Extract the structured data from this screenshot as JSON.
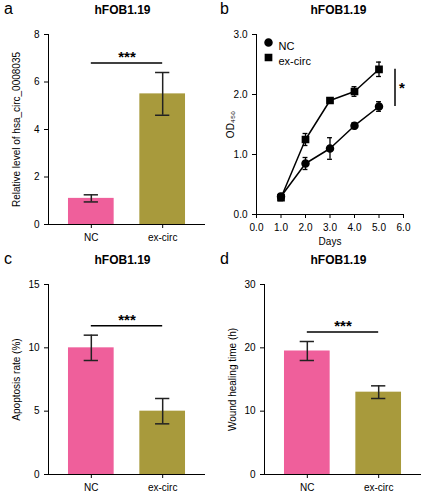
{
  "chart_data": [
    {
      "type": "bar",
      "panel": "a",
      "title": "hFOB1.19",
      "ylabel": "Relative level of hsa_circ_0008035",
      "categories": [
        "NC",
        "ex-circ"
      ],
      "values": [
        1.1,
        5.5
      ],
      "errors": [
        0.15,
        0.9
      ],
      "colors": [
        "#ef5f9b",
        "#a89a3c"
      ],
      "ylim": [
        0,
        8
      ],
      "yticks": [
        0,
        2,
        4,
        6,
        8
      ],
      "annotation": "***"
    },
    {
      "type": "line",
      "panel": "b",
      "title": "hFOB1.19",
      "ylabel": "OD₄₅₀",
      "xlabel": "Days",
      "x": [
        1,
        2,
        3,
        4,
        5
      ],
      "series": [
        {
          "name": "NC",
          "color": "#000000",
          "marker": "circle",
          "values": [
            0.3,
            0.85,
            1.1,
            1.48,
            1.8
          ],
          "errors": [
            0.05,
            0.1,
            0.18,
            0.05,
            0.08
          ]
        },
        {
          "name": "ex-circ",
          "color": "#000000",
          "marker": "square",
          "values": [
            0.28,
            1.25,
            1.9,
            2.05,
            2.42
          ],
          "errors": [
            0.05,
            0.1,
            0.03,
            0.08,
            0.12
          ]
        }
      ],
      "xlim": [
        0,
        6
      ],
      "xticks": [
        0,
        1,
        2,
        3,
        4,
        5,
        6
      ],
      "ylim": [
        0,
        3
      ],
      "yticks": [
        0,
        1,
        2,
        3
      ],
      "legend": "top-left",
      "annotation": "*"
    },
    {
      "type": "bar",
      "panel": "c",
      "title": "hFOB1.19",
      "ylabel": "Apoptosis rate (%)",
      "categories": [
        "NC",
        "ex-circ"
      ],
      "values": [
        10,
        5
      ],
      "errors": [
        1,
        1
      ],
      "colors": [
        "#ef5f9b",
        "#a89a3c"
      ],
      "ylim": [
        0,
        15
      ],
      "yticks": [
        0,
        5,
        10,
        15
      ],
      "annotation": "***"
    },
    {
      "type": "bar",
      "panel": "d",
      "title": "hFOB1.19",
      "ylabel": "Wound healing time (h)",
      "categories": [
        "NC",
        "ex-circ"
      ],
      "values": [
        19.5,
        13
      ],
      "errors": [
        1.5,
        1
      ],
      "colors": [
        "#ef5f9b",
        "#a89a3c"
      ],
      "ylim": [
        0,
        30
      ],
      "yticks": [
        0,
        10,
        20,
        30
      ],
      "annotation": "***"
    }
  ]
}
